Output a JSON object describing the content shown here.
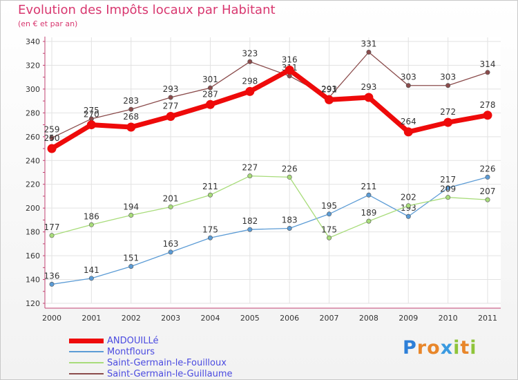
{
  "header": {
    "title": "Evolution des Impôts locaux par Habitant",
    "subtitle": "(en € et par an)"
  },
  "logo": {
    "text": "Proxiti",
    "letters": [
      "P",
      "r",
      "o",
      "x",
      "i",
      "t",
      "i"
    ],
    "colors": [
      "#2d7fd8",
      "#e8862a",
      "#e8862a",
      "#3a9ae0",
      "#8fc43a",
      "#e8862a",
      "#8fc43a"
    ]
  },
  "chart_data": {
    "type": "line",
    "title": "Evolution des Impôts locaux par Habitant",
    "subtitle": "(en € et par an)",
    "x": [
      "2000",
      "2001",
      "2002",
      "2003",
      "2004",
      "2005",
      "2006",
      "2007",
      "2008",
      "2009",
      "2010",
      "2011"
    ],
    "ylim": [
      120,
      340
    ],
    "yticks": [
      120,
      140,
      160,
      180,
      200,
      220,
      240,
      260,
      280,
      300,
      320,
      340
    ],
    "grid": true,
    "legend_position": "bottom-left",
    "series": [
      {
        "name": "ANDOUILLé",
        "values": [
          250,
          270,
          268,
          277,
          287,
          298,
          316,
          291,
          293,
          264,
          272,
          278
        ],
        "labels": [
          "250",
          "270",
          "268",
          "277",
          "287",
          "298",
          "316",
          "291",
          "293",
          "264",
          "272",
          "278"
        ],
        "color": "#ee0a0a",
        "width": "thick"
      },
      {
        "name": "Montflours",
        "values": [
          136,
          141,
          151,
          163,
          175,
          182,
          183,
          195,
          211,
          193,
          217,
          226
        ],
        "labels": [
          "136",
          "141",
          "151",
          "163",
          "175",
          "182",
          "183",
          "195",
          "211",
          "193",
          "217",
          "226"
        ],
        "color": "#5b9bd5",
        "width": "thin"
      },
      {
        "name": "Saint-Germain-le-Fouilloux",
        "values": [
          177,
          186,
          194,
          201,
          211,
          227,
          226,
          175,
          189,
          202,
          209,
          207
        ],
        "labels": [
          "177",
          "186",
          "194",
          "201",
          "211",
          "227",
          "226",
          "175",
          "189",
          "202",
          "209",
          "207"
        ],
        "color": "#a8dc7a",
        "width": "thin"
      },
      {
        "name": "Saint-Germain-le-Guillaume",
        "values": [
          259,
          275,
          283,
          293,
          301,
          323,
          311,
          293,
          331,
          303,
          303,
          314
        ],
        "labels": [
          "259",
          "275",
          "283",
          "293",
          "301",
          "323",
          "311",
          "293",
          "331",
          "303",
          "303",
          "314"
        ],
        "color": "#8a4b4b",
        "width": "thin"
      }
    ]
  }
}
